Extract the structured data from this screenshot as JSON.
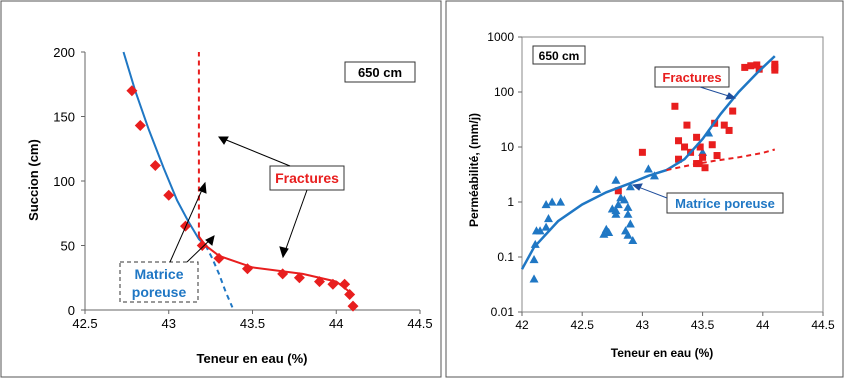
{
  "chart_data": [
    {
      "type": "scatter",
      "xlabel": "Teneur en eau (%)",
      "ylabel": "Succion (cm)",
      "xlim": [
        42.5,
        44.5
      ],
      "ylim": [
        0,
        200
      ],
      "xticks": [
        "42.5",
        "43",
        "43.5",
        "44",
        "44.5"
      ],
      "yticks": [
        "0",
        "50",
        "100",
        "150",
        "200"
      ],
      "grid": false,
      "annotations": {
        "box": "650 cm",
        "fractures": "Fractures",
        "matrice_line1": "Matrice",
        "matrice_line2": "poreuse"
      },
      "colors": {
        "matrix": "#1f77c4",
        "fracture": "#e81e1e",
        "diamond": "#e81e1e"
      },
      "series": [
        {
          "kind": "points",
          "x": [
            42.78,
            42.83,
            42.92,
            43.0,
            43.1,
            43.2,
            43.3,
            43.47,
            43.68,
            43.78,
            43.9,
            43.98,
            44.05,
            44.08,
            44.1
          ],
          "y": [
            170,
            143,
            112,
            89,
            65,
            50,
            40,
            32,
            28,
            25,
            22,
            20,
            20,
            12,
            3
          ]
        },
        {
          "kind": "line",
          "x": [
            42.73,
            42.8,
            42.88,
            42.97,
            43.05,
            43.12,
            43.18,
            43.22
          ],
          "y": [
            200,
            170,
            140,
            110,
            85,
            68,
            55,
            50
          ]
        },
        {
          "kind": "dashed",
          "x": [
            43.22,
            43.26,
            43.3,
            43.34,
            43.38
          ],
          "y": [
            50,
            40,
            28,
            14,
            2
          ]
        },
        {
          "kind": "fracture-line",
          "x": [
            43.18,
            43.22,
            43.3,
            43.5,
            43.8,
            44.0,
            44.1
          ],
          "y": [
            57,
            50,
            42,
            33,
            28,
            22,
            12
          ]
        },
        {
          "kind": "fracture-dashed",
          "x": [
            43.18,
            43.18
          ],
          "y": [
            57,
            200
          ]
        }
      ]
    },
    {
      "type": "scatter",
      "xlabel": "Teneur en eau (%)",
      "ylabel": "Perméabilité, (mm/j)",
      "xlim": [
        42,
        44.5
      ],
      "ylim": [
        0.01,
        1000
      ],
      "yscale": "log",
      "xticks": [
        "42",
        "42.5",
        "43",
        "43.5",
        "44",
        "44.5"
      ],
      "yticks": [
        "0.01",
        "0.1",
        "1",
        "10",
        "100",
        "1000"
      ],
      "grid": false,
      "annotations": {
        "box": "650 cm",
        "fractures": "Fractures",
        "matrice": "Matrice poreuse"
      },
      "colors": {
        "matrix": "#1f77c4",
        "fracture": "#e81e1e"
      },
      "series": [
        {
          "kind": "triangles",
          "x": [
            42.1,
            42.1,
            42.11,
            42.12,
            42.15,
            42.2,
            42.22,
            42.32,
            42.62,
            42.68,
            42.7,
            42.72,
            42.75,
            42.78,
            42.8,
            42.82,
            42.85,
            42.88,
            42.88,
            42.9,
            42.92,
            43.05,
            43.1,
            43.5,
            43.55,
            42.2,
            42.25,
            42.78,
            42.88,
            42.9,
            42.78,
            42.86
          ],
          "y": [
            0.04,
            0.09,
            0.17,
            0.3,
            0.3,
            0.9,
            0.5,
            1.0,
            1.7,
            0.26,
            0.32,
            0.28,
            0.75,
            2.5,
            0.9,
            1.2,
            1.1,
            0.8,
            0.6,
            0.4,
            0.2,
            4.0,
            3.0,
            8.0,
            18.0,
            0.35,
            1.0,
            0.6,
            0.25,
            1.9,
            0.7,
            0.3
          ]
        },
        {
          "kind": "squares",
          "x": [
            42.8,
            43.0,
            43.27,
            43.3,
            43.3,
            43.35,
            43.37,
            43.4,
            43.45,
            43.45,
            43.48,
            43.5,
            43.52,
            43.58,
            43.6,
            43.62,
            43.68,
            43.72,
            43.75,
            43.85,
            43.95,
            43.97,
            44.1,
            44.1,
            44.1,
            43.9,
            43.47
          ],
          "y": [
            1.6,
            8.0,
            55,
            6.0,
            13.0,
            10.0,
            25,
            8.0,
            5.0,
            15,
            10,
            6.5,
            4.2,
            11,
            27,
            7,
            25,
            20,
            45,
            280,
            310,
            260,
            320,
            280,
            250,
            300,
            5
          ]
        },
        {
          "kind": "line",
          "x": [
            42.0,
            42.1,
            42.3,
            42.5,
            42.7,
            42.9,
            43.05,
            43.2,
            43.35,
            43.5,
            43.65,
            43.8,
            43.95,
            44.1
          ],
          "y": [
            0.06,
            0.15,
            0.45,
            0.9,
            1.5,
            2.2,
            3.0,
            3.8,
            6.0,
            14,
            40,
            100,
            220,
            450
          ]
        },
        {
          "kind": "dashed",
          "x": [
            43.2,
            43.4,
            43.6,
            43.8,
            44.0,
            44.1
          ],
          "y": [
            3.8,
            4.7,
            5.6,
            6.5,
            7.8,
            9.0
          ]
        }
      ]
    }
  ]
}
